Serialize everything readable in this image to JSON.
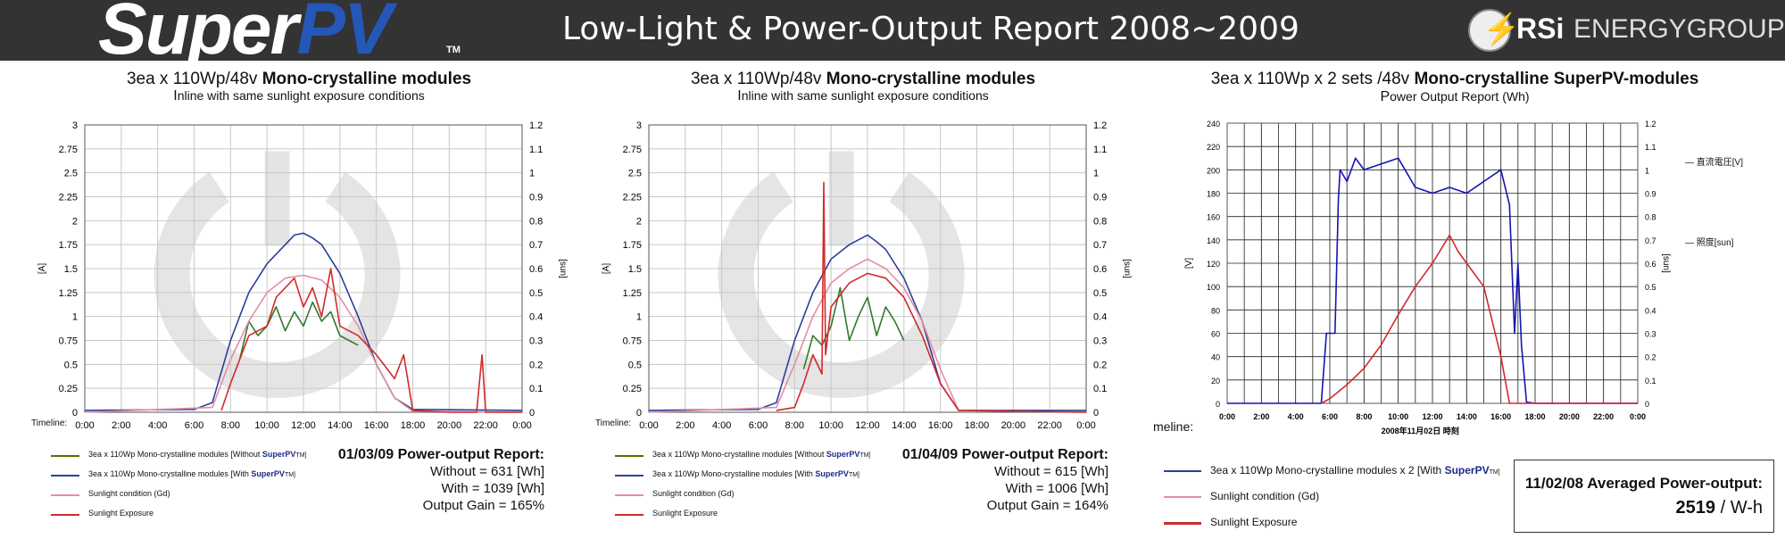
{
  "header": {
    "logo_text_1": "Super",
    "logo_text_2": "PV",
    "logo_tm": "TM",
    "title": "Low-Light & Power-Output Report 2008~2009",
    "brand_rsi": "RSi",
    "brand_energy": "ENERGYGROUP"
  },
  "panels": [
    {
      "title_pre": "3ea x 110Wp/48v ",
      "title_bold": "Mono-crystalline modules",
      "subtitle": "Inline with same sunlight exposure conditions",
      "timeline_label": "Timeline:",
      "legend": [
        {
          "text": "3ea x 110Wp Mono-crystalline modules [Without ",
          "strong": "SuperPV",
          "tail": "TM]",
          "color": "#5a6e00"
        },
        {
          "text": "3ea x 110Wp Mono-crystalline modules [With ",
          "strong": "SuperPV",
          "tail": "TM]",
          "color": "#2b3f9a"
        },
        {
          "text": "Sunlight condition (Gd)",
          "strong": "",
          "tail": "",
          "color": "#e58ea3"
        },
        {
          "text": "Sunlight  Exposure",
          "strong": "",
          "tail": "",
          "color": "#d12a2a"
        }
      ],
      "report": {
        "heading": "01/03/09 Power-output Report:",
        "without": "Without = 631 [Wh]",
        "with": "With = 1039 [Wh]",
        "gain": "Output Gain = 165%"
      }
    },
    {
      "title_pre": "3ea x 110Wp/48v ",
      "title_bold": "Mono-crystalline modules",
      "subtitle": "Inline with same sunlight exposure conditions",
      "timeline_label": "Timeline:",
      "legend": [
        {
          "text": "3ea x 110Wp Mono-crystalline modules [Without ",
          "strong": "SuperPV",
          "tail": "TM]",
          "color": "#5a6e00"
        },
        {
          "text": "3ea x 110Wp Mono-crystalline modules [With ",
          "strong": "SuperPV",
          "tail": "TM]",
          "color": "#2b3f9a"
        },
        {
          "text": "Sunlight condition (Gd)",
          "strong": "",
          "tail": "",
          "color": "#e58ea3"
        },
        {
          "text": "Sunlight  Exposure",
          "strong": "",
          "tail": "",
          "color": "#d12a2a"
        }
      ],
      "report": {
        "heading": "01/04/09 Power-output Report:",
        "without": "Without = 615 [Wh]",
        "with": "With = 1006 [Wh]",
        "gain": "Output Gain = 164%"
      }
    },
    {
      "title_pre": "3ea x 110Wp x 2 sets /48v ",
      "title_bold": "Mono-crystalline SuperPV-modules",
      "subtitle": "Power Output Report (Wh)",
      "timeline_label": "meline:",
      "side_legend": [
        "直流電圧[V]",
        "照度[sun]"
      ],
      "legend": [
        {
          "text": "3ea x 110Wp Mono-crystalline modules x 2 [With ",
          "strong": "SuperPV",
          "tail": "TM]",
          "color": "#2b3f9a"
        },
        {
          "text": "Sunlight condition (Gd)",
          "strong": "",
          "tail": "",
          "color": "#e58ea3"
        },
        {
          "text": "Sunlight  Exposure",
          "strong": "",
          "tail": "",
          "color": "#d12a2a"
        }
      ],
      "avg": {
        "title": "11/02/08 Averaged Power-output:",
        "value": "2519",
        "unit": " / W-h"
      }
    }
  ],
  "chart_data": [
    {
      "type": "line",
      "ylabel": "[A]",
      "y2label": "[sun]",
      "ylim": [
        0,
        3
      ],
      "y2lim": [
        0,
        1.2
      ],
      "yticks": [
        "0",
        "0.25",
        "0.5",
        "0.75",
        "1",
        "1.25",
        "1.5",
        "1.75",
        "2",
        "2.25",
        "2.5",
        "2.75",
        "3"
      ],
      "y2ticks": [
        "0",
        "0.1",
        "0.2",
        "0.3",
        "0.4",
        "0.5",
        "0.6",
        "0.7",
        "0.8",
        "0.9",
        "1",
        "1.1",
        "1.2"
      ],
      "xticks": [
        "0:00",
        "2:00",
        "4:00",
        "6:00",
        "8:00",
        "10:00",
        "12:00",
        "14:00",
        "16:00",
        "18:00",
        "20:00",
        "22:00",
        "0:00"
      ],
      "xlim": [
        0,
        24
      ],
      "grid": true,
      "series": [
        {
          "name": "3ea x 110Wp Mono-crystalline modules [With SuperPVTM]",
          "color": "#2b3f9a",
          "x": [
            0,
            6,
            7,
            8,
            9,
            10,
            11,
            11.5,
            12,
            12.5,
            13,
            14,
            15,
            16,
            17,
            18,
            24
          ],
          "y": [
            0.02,
            0.03,
            0.1,
            0.75,
            1.25,
            1.55,
            1.75,
            1.85,
            1.87,
            1.82,
            1.75,
            1.45,
            1.0,
            0.5,
            0.15,
            0.03,
            0.02
          ]
        },
        {
          "name": "3ea x 110Wp Mono-crystalline modules [Without SuperPVTM]",
          "color": "#2f7a2f",
          "x": [
            8.5,
            9,
            9.5,
            10,
            10.5,
            11,
            11.5,
            12,
            12.5,
            13,
            13.5,
            14,
            14.5,
            15
          ],
          "y": [
            0.55,
            0.95,
            0.8,
            0.9,
            1.1,
            0.85,
            1.05,
            0.9,
            1.15,
            0.95,
            1.05,
            0.8,
            0.75,
            0.7
          ]
        },
        {
          "name": "Sunlight condition (Gd)",
          "color": "#e58ea3",
          "x": [
            0,
            7,
            8,
            9,
            10,
            11,
            12,
            13,
            14,
            15,
            16,
            17,
            18,
            24
          ],
          "y": [
            0,
            0.05,
            0.55,
            0.95,
            1.25,
            1.4,
            1.43,
            1.38,
            1.2,
            0.9,
            0.5,
            0.15,
            0.01,
            0
          ]
        },
        {
          "name": "Sunlight  Exposure",
          "color": "#d12a2a",
          "x": [
            7.5,
            8,
            9,
            10,
            10.5,
            11,
            11.5,
            12,
            12.5,
            13,
            13.5,
            14,
            15,
            16,
            17,
            17.5,
            18,
            20,
            21.5,
            21.8,
            22,
            24
          ],
          "y": [
            0.02,
            0.3,
            0.8,
            0.9,
            1.2,
            1.3,
            1.4,
            1.1,
            1.3,
            1.0,
            1.5,
            0.9,
            0.8,
            0.6,
            0.35,
            0.6,
            0.02,
            0,
            0,
            0.6,
            0,
            0
          ]
        }
      ]
    },
    {
      "type": "line",
      "ylabel": "[A]",
      "y2label": "[sun]",
      "ylim": [
        0,
        3
      ],
      "y2lim": [
        0,
        1.2
      ],
      "yticks": [
        "0",
        "0.25",
        "0.5",
        "0.75",
        "1",
        "1.25",
        "1.5",
        "1.75",
        "2",
        "2.25",
        "2.5",
        "2.75",
        "3"
      ],
      "y2ticks": [
        "0",
        "0.1",
        "0.2",
        "0.3",
        "0.4",
        "0.5",
        "0.6",
        "0.7",
        "0.8",
        "0.9",
        "1",
        "1.1",
        "1.2"
      ],
      "xticks": [
        "0:00",
        "2:00",
        "4:00",
        "6:00",
        "8:00",
        "10:00",
        "12:00",
        "14:00",
        "16:00",
        "18:00",
        "20:00",
        "22:00",
        "0:00"
      ],
      "xlim": [
        0,
        24
      ],
      "grid": true,
      "series": [
        {
          "name": "3ea x 110Wp Mono-crystalline modules [With SuperPVTM]",
          "color": "#2b3f9a",
          "x": [
            0,
            6,
            7,
            8,
            9,
            10,
            11,
            12,
            12.5,
            13,
            14,
            15,
            16,
            17,
            24
          ],
          "y": [
            0.02,
            0.03,
            0.1,
            0.75,
            1.25,
            1.6,
            1.75,
            1.85,
            1.78,
            1.7,
            1.4,
            0.95,
            0.3,
            0.02,
            0.02
          ]
        },
        {
          "name": "3ea x 110Wp Mono-crystalline modules [Without SuperPVTM]",
          "color": "#2f7a2f",
          "x": [
            8.5,
            9,
            9.5,
            10,
            10.5,
            11,
            11.5,
            12,
            12.5,
            13,
            13.5,
            14
          ],
          "y": [
            0.45,
            0.8,
            0.7,
            0.9,
            1.3,
            0.75,
            1.0,
            1.2,
            0.8,
            1.1,
            0.95,
            0.75
          ]
        },
        {
          "name": "Sunlight condition (Gd)",
          "color": "#e58ea3",
          "x": [
            0,
            7,
            8,
            9,
            10,
            11,
            12,
            13,
            14,
            15,
            16,
            17,
            24
          ],
          "y": [
            0,
            0.05,
            0.5,
            1.0,
            1.35,
            1.5,
            1.6,
            1.5,
            1.3,
            0.95,
            0.45,
            0.02,
            0
          ]
        },
        {
          "name": "Sunlight  Exposure",
          "color": "#d12a2a",
          "x": [
            7,
            8,
            8.5,
            9,
            9.5,
            9.6,
            9.7,
            10,
            11,
            12,
            13,
            14,
            15,
            16,
            17,
            24
          ],
          "y": [
            0.02,
            0.05,
            0.3,
            0.6,
            0.4,
            2.4,
            0.6,
            1.1,
            1.35,
            1.45,
            1.4,
            1.2,
            0.8,
            0.3,
            0.02,
            0
          ]
        }
      ]
    },
    {
      "type": "line",
      "ylabel": "[V]",
      "y2label": "[sun]",
      "xlabel": "2008年11月02日  時刻",
      "ylim": [
        0,
        240
      ],
      "y2lim": [
        0,
        1.2
      ],
      "yticks": [
        "0",
        "20",
        "40",
        "60",
        "80",
        "100",
        "120",
        "140",
        "160",
        "180",
        "200",
        "220",
        "240"
      ],
      "y2ticks": [
        "0",
        "0.1",
        "0.2",
        "0.3",
        "0.4",
        "0.5",
        "0.6",
        "0.7",
        "0.8",
        "0.9",
        "1",
        "1.1",
        "1.2"
      ],
      "xticks": [
        "0:00",
        "2:00",
        "4:00",
        "6:00",
        "8:00",
        "10:00",
        "12:00",
        "14:00",
        "16:00",
        "18:00",
        "20:00",
        "22:00",
        "0:00"
      ],
      "xlim": [
        0,
        24
      ],
      "grid": true,
      "series": [
        {
          "name": "直流電圧[V]",
          "color": "#1414b4",
          "x": [
            0,
            5.5,
            5.8,
            6.3,
            6.5,
            6.6,
            7,
            7.5,
            8,
            9,
            10,
            11,
            12,
            13,
            14,
            15,
            16,
            16.5,
            16.8,
            17,
            17.2,
            17.5,
            18,
            24
          ],
          "y": [
            0,
            0,
            60,
            60,
            175,
            200,
            190,
            210,
            200,
            205,
            210,
            185,
            180,
            185,
            180,
            190,
            200,
            170,
            60,
            120,
            50,
            1,
            0,
            0
          ]
        },
        {
          "name": "照度[sun]",
          "color": "#d12a2a",
          "x": [
            5.5,
            6,
            7,
            8,
            9,
            10,
            11,
            12,
            13,
            13.5,
            14,
            15,
            16,
            16.5,
            24
          ],
          "y": [
            0,
            0.02,
            0.08,
            0.15,
            0.25,
            0.38,
            0.5,
            0.6,
            0.72,
            0.65,
            0.6,
            0.5,
            0.2,
            0,
            0
          ]
        }
      ]
    }
  ]
}
